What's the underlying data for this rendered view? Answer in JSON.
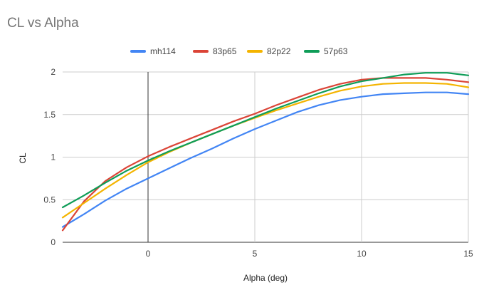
{
  "chart_data": {
    "type": "line",
    "title": "CL vs Alpha",
    "xlabel": "Alpha (deg)",
    "ylabel": "CL",
    "xlim": [
      -4,
      15
    ],
    "ylim": [
      0,
      2
    ],
    "x_ticks": [
      "0",
      "5",
      "10",
      "15"
    ],
    "x_tick_values": [
      0,
      5,
      10,
      15
    ],
    "y_ticks": [
      "0",
      "0.5",
      "1",
      "1.5",
      "2"
    ],
    "y_tick_values": [
      0,
      0.5,
      1,
      1.5,
      2
    ],
    "grid": true,
    "legend_position": "top",
    "x": [
      -4,
      -3,
      -2,
      -1,
      0,
      1,
      2,
      3,
      4,
      5,
      6,
      7,
      8,
      9,
      10,
      11,
      12,
      13,
      14,
      15
    ],
    "series": [
      {
        "name": "mh114",
        "color": "#4285f4",
        "values": [
          0.18,
          0.33,
          0.49,
          0.63,
          0.75,
          0.87,
          0.99,
          1.1,
          1.22,
          1.33,
          1.43,
          1.53,
          1.61,
          1.67,
          1.71,
          1.74,
          1.75,
          1.76,
          1.76,
          1.74
        ]
      },
      {
        "name": "83p65",
        "color": "#db4437",
        "values": [
          0.14,
          0.48,
          0.72,
          0.88,
          1.01,
          1.12,
          1.22,
          1.32,
          1.42,
          1.51,
          1.61,
          1.7,
          1.79,
          1.86,
          1.91,
          1.93,
          1.93,
          1.93,
          1.91,
          1.88
        ]
      },
      {
        "name": "82p22",
        "color": "#f4b400",
        "values": [
          0.29,
          0.46,
          0.63,
          0.79,
          0.94,
          1.06,
          1.17,
          1.27,
          1.37,
          1.46,
          1.55,
          1.63,
          1.71,
          1.78,
          1.83,
          1.86,
          1.87,
          1.87,
          1.86,
          1.82
        ]
      },
      {
        "name": "57p63",
        "color": "#0f9d58",
        "values": [
          0.41,
          0.55,
          0.7,
          0.84,
          0.96,
          1.07,
          1.17,
          1.27,
          1.37,
          1.47,
          1.57,
          1.66,
          1.75,
          1.83,
          1.89,
          1.93,
          1.97,
          1.99,
          1.99,
          1.96
        ]
      }
    ]
  }
}
